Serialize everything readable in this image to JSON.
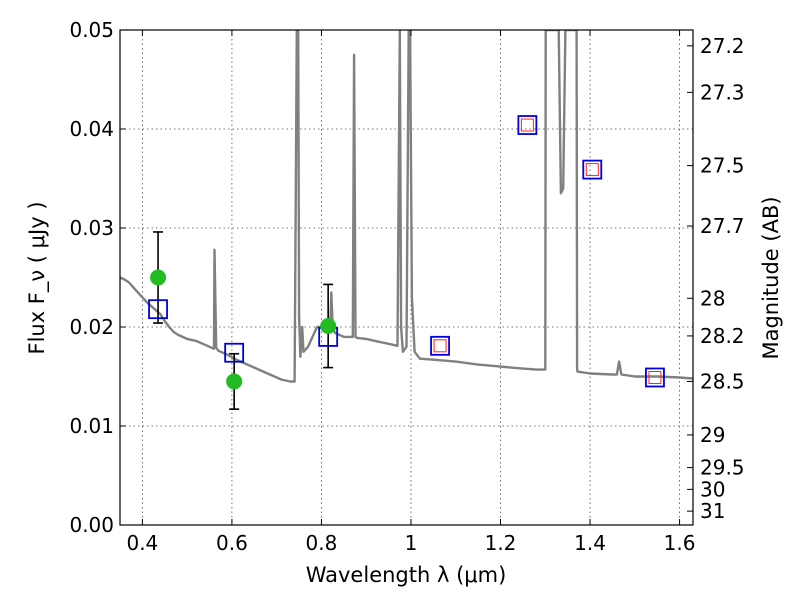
{
  "chart_data": {
    "type": "scatter",
    "xlabel": "Wavelength  λ (μm)",
    "ylabel": "Flux  F_ν  ( μJy )",
    "ylabel_right": "Magnitude (AB)",
    "xlim": [
      0.35,
      1.63
    ],
    "ylim": [
      0.0,
      0.05
    ],
    "x_ticks": [
      0.4,
      0.6,
      0.8,
      1.0,
      1.2,
      1.4,
      1.6
    ],
    "x_tick_labels": [
      "0.4",
      "0.6",
      "0.8",
      "1",
      "1.2",
      "1.4",
      "1.6"
    ],
    "y_ticks": [
      0.0,
      0.01,
      0.02,
      0.03,
      0.04,
      0.05
    ],
    "y_tick_labels": [
      "0.00",
      "0.01",
      "0.02",
      "0.03",
      "0.04",
      "0.05"
    ],
    "right_ticks": [
      {
        "label": "27.2",
        "flux": 0.0484
      },
      {
        "label": "27.3",
        "flux": 0.0437
      },
      {
        "label": "27.5",
        "flux": 0.0363
      },
      {
        "label": "27.7",
        "flux": 0.0302
      },
      {
        "label": "28",
        "flux": 0.0229
      },
      {
        "label": "28.2",
        "flux": 0.0191
      },
      {
        "label": "28.5",
        "flux": 0.0145
      },
      {
        "label": "29",
        "flux": 0.0091
      },
      {
        "label": "29.5",
        "flux": 0.0058
      },
      {
        "label": "30",
        "flux": 0.0036
      },
      {
        "label": "31",
        "flux": 0.0014
      }
    ],
    "grid": true,
    "colors": {
      "model": "#808080",
      "observed": "#22bb22",
      "model_phot": "#0000dd",
      "upper": "#ff2222",
      "errorbar": "#000000"
    },
    "model_spectrum": {
      "x": [
        0.35,
        0.36,
        0.37,
        0.38,
        0.39,
        0.4,
        0.41,
        0.42,
        0.43,
        0.44,
        0.45,
        0.46,
        0.47,
        0.48,
        0.49,
        0.5,
        0.52,
        0.54,
        0.56,
        0.561,
        0.565,
        0.57,
        0.59,
        0.61,
        0.63,
        0.65,
        0.67,
        0.69,
        0.71,
        0.73,
        0.74,
        0.745,
        0.748,
        0.75,
        0.753,
        0.757,
        0.76,
        0.77,
        0.78,
        0.785,
        0.79,
        0.8,
        0.81,
        0.82,
        0.822,
        0.825,
        0.83,
        0.84,
        0.85,
        0.86,
        0.87,
        0.873,
        0.876,
        0.88,
        0.9,
        0.93,
        0.96,
        0.97,
        0.975,
        0.978,
        0.982,
        0.99,
        0.995,
        0.998,
        1.002,
        1.008,
        1.02,
        1.05,
        1.1,
        1.15,
        1.2,
        1.25,
        1.28,
        1.3,
        1.301,
        1.303,
        1.31,
        1.33,
        1.335,
        1.34,
        1.345,
        1.35,
        1.36,
        1.37,
        1.371,
        1.372,
        1.4,
        1.45,
        1.46,
        1.465,
        1.47,
        1.5,
        1.55,
        1.6,
        1.63
      ],
      "y": [
        0.025,
        0.0248,
        0.0245,
        0.024,
        0.0235,
        0.023,
        0.0225,
        0.0221,
        0.0217,
        0.0213,
        0.0206,
        0.02,
        0.0195,
        0.0192,
        0.019,
        0.0188,
        0.0186,
        0.0182,
        0.0178,
        0.0278,
        0.0179,
        0.0176,
        0.0172,
        0.0167,
        0.0163,
        0.0159,
        0.0155,
        0.0151,
        0.0147,
        0.0145,
        0.0145,
        0.05,
        0.05,
        0.021,
        0.017,
        0.02,
        0.0175,
        0.018,
        0.019,
        0.0195,
        0.02,
        0.02,
        0.0196,
        0.0202,
        0.0235,
        0.0202,
        0.0194,
        0.0192,
        0.019,
        0.019,
        0.019,
        0.0475,
        0.019,
        0.0189,
        0.0188,
        0.0185,
        0.0182,
        0.0181,
        0.05,
        0.02,
        0.0175,
        0.018,
        0.05,
        0.05,
        0.023,
        0.0175,
        0.0168,
        0.0167,
        0.0165,
        0.0162,
        0.016,
        0.0158,
        0.0157,
        0.0157,
        0.05,
        0.05,
        0.05,
        0.05,
        0.0335,
        0.034,
        0.05,
        0.05,
        0.05,
        0.05,
        0.0158,
        0.0155,
        0.0153,
        0.0152,
        0.0152,
        0.0165,
        0.0152,
        0.015,
        0.015,
        0.0149,
        0.0148
      ]
    },
    "observed_points": [
      {
        "x": 0.435,
        "y": 0.025,
        "err_low": 0.0046,
        "err_high": 0.0046
      },
      {
        "x": 0.605,
        "y": 0.0145,
        "err_low": 0.0028,
        "err_high": 0.0028
      },
      {
        "x": 0.815,
        "y": 0.0201,
        "err_low": 0.0042,
        "err_high": 0.0042
      }
    ],
    "model_photometry": [
      {
        "x": 0.435,
        "y": 0.0218
      },
      {
        "x": 0.605,
        "y": 0.0174
      },
      {
        "x": 0.815,
        "y": 0.019
      },
      {
        "x": 1.065,
        "y": 0.0181
      },
      {
        "x": 1.26,
        "y": 0.0404
      },
      {
        "x": 1.405,
        "y": 0.0359
      },
      {
        "x": 1.545,
        "y": 0.0149
      }
    ],
    "upper_limit_points": [
      {
        "x": 1.065,
        "y": 0.0181
      },
      {
        "x": 1.26,
        "y": 0.0404
      },
      {
        "x": 1.405,
        "y": 0.0359
      },
      {
        "x": 1.545,
        "y": 0.0149
      }
    ]
  }
}
